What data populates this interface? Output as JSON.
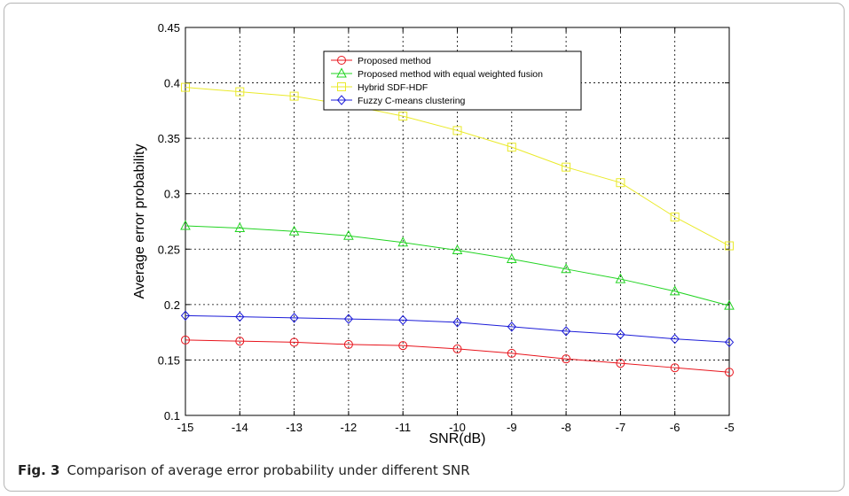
{
  "figure": {
    "label": "Fig. 3",
    "caption": "Comparison of average error probability under different SNR"
  },
  "chart_data": {
    "type": "line",
    "xlabel": "SNR(dB)",
    "ylabel": "Average error probability",
    "xlim": [
      -15,
      -5
    ],
    "ylim": [
      0.1,
      0.45
    ],
    "x_ticks": [
      -15,
      -14,
      -13,
      -12,
      -11,
      -10,
      -9,
      -8,
      -7,
      -6,
      -5
    ],
    "y_ticks": [
      0.1,
      0.15,
      0.2,
      0.25,
      0.3,
      0.35,
      0.4,
      0.45
    ],
    "x_tick_labels": [
      "-15",
      "-14",
      "-13",
      "-12",
      "-11",
      "-10",
      "-9",
      "-8",
      "-7",
      "-6",
      "-5"
    ],
    "y_tick_labels": [
      "0.1",
      "0.15",
      "0.2",
      "0.25",
      "0.3",
      "0.35",
      "0.4",
      "0.45"
    ],
    "grid": true,
    "legend_position": "top-center",
    "x": [
      -15,
      -14,
      -13,
      -12,
      -11,
      -10,
      -9,
      -8,
      -7,
      -6,
      -5
    ],
    "series": [
      {
        "name": "Proposed method",
        "color": "#e8141c",
        "marker": "circle",
        "values": [
          0.168,
          0.167,
          0.166,
          0.164,
          0.163,
          0.16,
          0.156,
          0.151,
          0.147,
          0.143,
          0.139
        ]
      },
      {
        "name": "Proposed method with equal weighted fusion",
        "color": "#22d422",
        "marker": "triangle",
        "values": [
          0.271,
          0.269,
          0.266,
          0.262,
          0.256,
          0.249,
          0.241,
          0.232,
          0.223,
          0.212,
          0.199
        ]
      },
      {
        "name": "Hybrid SDF-HDF",
        "color": "#eaea2a",
        "marker": "square",
        "values": [
          0.396,
          0.392,
          0.388,
          0.38,
          0.37,
          0.357,
          0.342,
          0.324,
          0.31,
          0.279,
          0.253
        ]
      },
      {
        "name": "Fuzzy C-means clustering",
        "color": "#1c1cd8",
        "marker": "diamond",
        "values": [
          0.19,
          0.189,
          0.188,
          0.187,
          0.186,
          0.184,
          0.18,
          0.176,
          0.173,
          0.169,
          0.166
        ]
      }
    ]
  }
}
